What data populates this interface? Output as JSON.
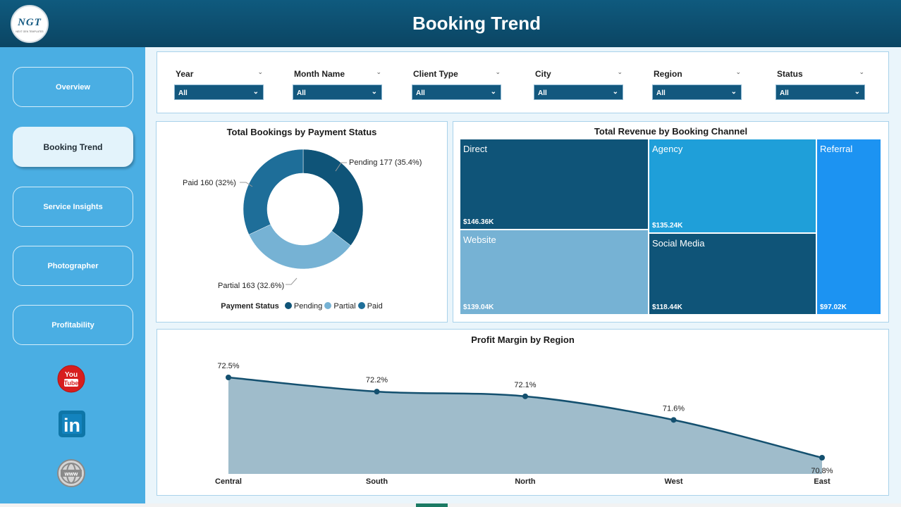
{
  "header": {
    "title": "Booking Trend",
    "logo_text": "NGT",
    "logo_subtext": "NEXT GEN TEMPLATES"
  },
  "sidebar": {
    "items": [
      {
        "label": "Overview"
      },
      {
        "label": "Booking Trend"
      },
      {
        "label": "Service Insights"
      },
      {
        "label": "Photographer"
      },
      {
        "label": "Profitability"
      }
    ],
    "active_item": "Booking Trend",
    "social": [
      {
        "icon": "youtube-icon",
        "text": "You Tube",
        "color": "#d71e1e"
      },
      {
        "icon": "linkedin-icon",
        "text": "in",
        "color": "#0e76a8"
      },
      {
        "icon": "globe-icon",
        "text": "www",
        "color": "#8a8a8a"
      }
    ]
  },
  "filters": [
    {
      "label": "Year",
      "value": "All"
    },
    {
      "label": "Month Name",
      "value": "All"
    },
    {
      "label": "Client Type",
      "value": "All"
    },
    {
      "label": "City",
      "value": "All"
    },
    {
      "label": "Region",
      "value": "All"
    },
    {
      "label": "Status",
      "value": "All"
    }
  ],
  "colors": {
    "header": "#0e5274",
    "sidebar": "#4aaee3",
    "dark_blue": "#0f5478",
    "mid_blue": "#1e6e99",
    "light_blue": "#76b2d4",
    "agency_blue": "#1f9fd9",
    "referral_blue": "#1c93f2",
    "area_fill": "#9fbccb",
    "line": "#14506f"
  },
  "chart_data": [
    {
      "type": "pie",
      "title": "Total Bookings by Payment Status",
      "legend_title": "Payment Status",
      "slices": [
        {
          "name": "Pending",
          "value": 177,
          "percent": "35.4%",
          "label": "Pending 177 (35.4%)",
          "color": "#0f5478"
        },
        {
          "name": "Partial",
          "value": 163,
          "percent": "32.6%",
          "label": "Partial 163 (32.6%)",
          "color": "#76b2d4"
        },
        {
          "name": "Paid",
          "value": 160,
          "percent": "32%",
          "label": "Paid 160 (32%)",
          "color": "#1e6e99"
        }
      ]
    },
    {
      "type": "treemap",
      "title": "Total Revenue by Booking Channel",
      "items": [
        {
          "name": "Direct",
          "value": 146.36,
          "label": "$146.36K",
          "color": "#0f5478"
        },
        {
          "name": "Agency",
          "value": 135.24,
          "label": "$135.24K",
          "color": "#1f9fd9"
        },
        {
          "name": "Website",
          "value": 139.04,
          "label": "$139.04K",
          "color": "#76b2d4"
        },
        {
          "name": "Social Media",
          "value": 118.44,
          "label": "$118.44K",
          "color": "#0f5478"
        },
        {
          "name": "Referral",
          "value": 97.02,
          "label": "$97.02K",
          "color": "#1c93f2"
        }
      ]
    },
    {
      "type": "area",
      "title": "Profit Margin by Region",
      "categories": [
        "Central",
        "South",
        "North",
        "West",
        "East"
      ],
      "values": [
        72.5,
        72.2,
        72.1,
        71.6,
        70.8
      ],
      "labels": [
        "72.5%",
        "72.2%",
        "72.1%",
        "71.6%",
        "70.8%"
      ],
      "ylim": [
        70.8,
        72.5
      ]
    }
  ]
}
